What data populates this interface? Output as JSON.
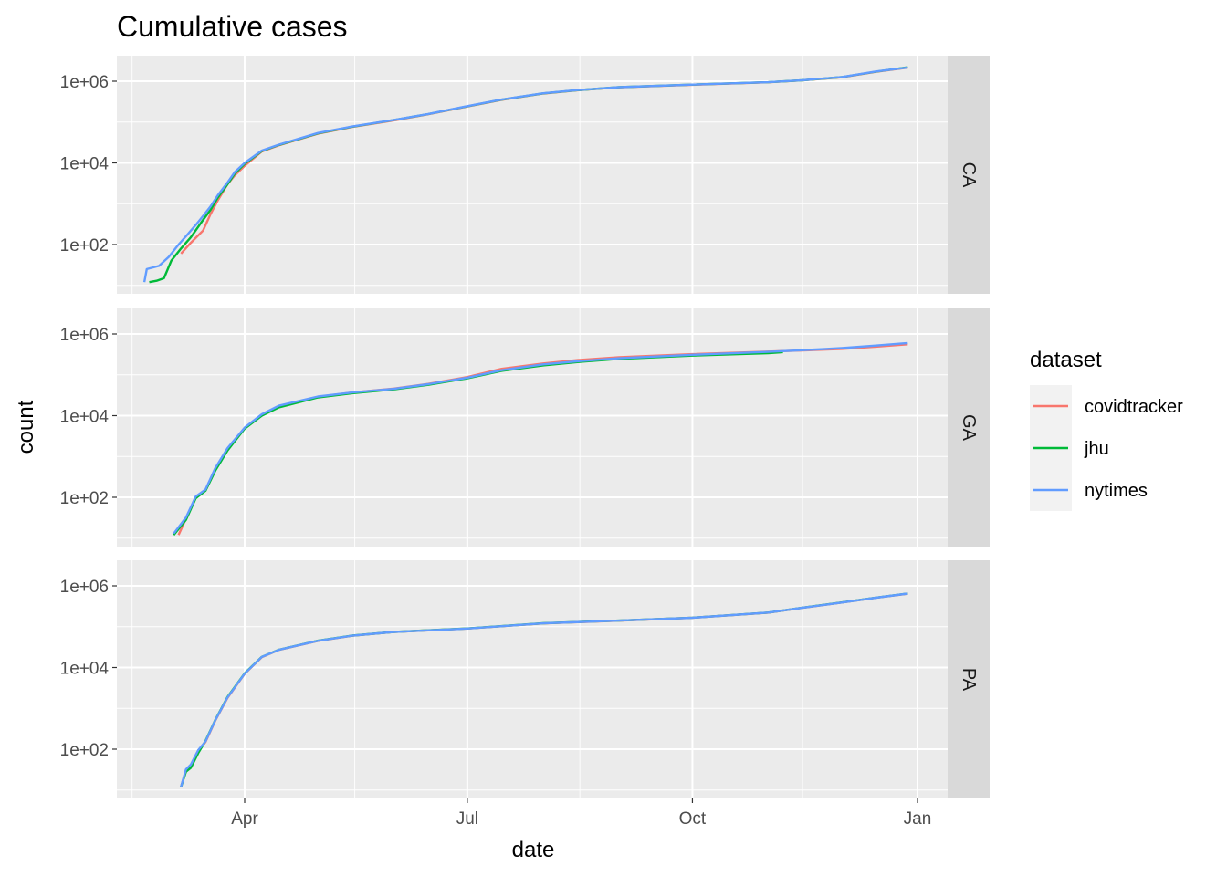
{
  "chart_data": {
    "type": "line",
    "title": "Cumulative cases",
    "xlabel": "date",
    "ylabel": "count",
    "y_scale": "log10",
    "y_ticks": [
      100,
      10000,
      1000000
    ],
    "y_tick_labels": [
      "1e+02",
      "1e+04",
      "1e+06"
    ],
    "x_ticks": [
      "2020-04-01",
      "2020-07-01",
      "2020-10-01",
      "2021-01-01"
    ],
    "x_tick_labels": [
      "Apr",
      "Jul",
      "Oct",
      "Jan"
    ],
    "xlim": [
      "2020-02-15",
      "2021-01-24"
    ],
    "ylim": [
      12,
      2600000
    ],
    "legend": {
      "title": "dataset",
      "position": "right",
      "entries": [
        "covidtracker",
        "jhu",
        "nytimes"
      ]
    },
    "colors": {
      "covidtracker": "#F8766D",
      "jhu": "#00BA38",
      "nytimes": "#619CFF"
    },
    "facets": [
      {
        "label": "CA",
        "series": [
          {
            "name": "covidtracker",
            "x": [
              "2020-03-06",
              "2020-03-10",
              "2020-03-15",
              "2020-03-18",
              "2020-03-21",
              "2020-03-25",
              "2020-03-28",
              "2020-04-01",
              "2020-04-08",
              "2020-04-15",
              "2020-05-01",
              "2020-05-15",
              "2020-06-01",
              "2020-06-15",
              "2020-07-01",
              "2020-07-15",
              "2020-08-01",
              "2020-08-15",
              "2020-09-01",
              "2020-10-01",
              "2020-11-01",
              "2020-11-15",
              "2020-12-01",
              "2020-12-15",
              "2020-12-28"
            ],
            "y": [
              60,
              110,
              220,
              550,
              1200,
              3000,
              5000,
              8500,
              19000,
              27000,
              52000,
              76000,
              110000,
              155000,
              240000,
              350000,
              500000,
              600000,
              710000,
              820000,
              940000,
              1050000,
              1250000,
              1700000,
              2150000
            ]
          },
          {
            "name": "jhu",
            "x": [
              "2020-02-22",
              "2020-02-25",
              "2020-02-28",
              "2020-03-02",
              "2020-03-06",
              "2020-03-10",
              "2020-03-15",
              "2020-03-18",
              "2020-03-21",
              "2020-03-25",
              "2020-03-28",
              "2020-04-01",
              "2020-04-08",
              "2020-04-15",
              "2020-05-01",
              "2020-05-15",
              "2020-06-01",
              "2020-06-15",
              "2020-07-01",
              "2020-07-15",
              "2020-08-01",
              "2020-08-15",
              "2020-09-01",
              "2020-10-01",
              "2020-11-01",
              "2020-11-15",
              "2020-12-01",
              "2020-12-15",
              "2020-12-28"
            ],
            "y": [
              12,
              13,
              15,
              40,
              80,
              150,
              400,
              700,
              1400,
              3000,
              5500,
              9500,
              19500,
              27500,
              53000,
              77000,
              112000,
              157000,
              243000,
              353000,
              505000,
              605000,
              715000,
              825000,
              945000,
              1055000,
              1260000,
              1720000,
              2200000
            ]
          },
          {
            "name": "nytimes",
            "x": [
              "2020-02-20",
              "2020-02-21",
              "2020-02-26",
              "2020-03-01",
              "2020-03-05",
              "2020-03-08",
              "2020-03-12",
              "2020-03-15",
              "2020-03-18",
              "2020-03-21",
              "2020-03-25",
              "2020-03-28",
              "2020-04-01",
              "2020-04-08",
              "2020-04-15",
              "2020-05-01",
              "2020-05-15",
              "2020-06-01",
              "2020-06-15",
              "2020-07-01",
              "2020-07-15",
              "2020-08-01",
              "2020-08-15",
              "2020-09-01",
              "2020-10-01",
              "2020-11-01",
              "2020-11-15",
              "2020-12-01",
              "2020-12-15",
              "2020-12-28"
            ],
            "y": [
              12,
              25,
              30,
              50,
              100,
              160,
              300,
              500,
              850,
              1600,
              3300,
              6000,
              10000,
              20000,
              28000,
              54000,
              78000,
              113000,
              158000,
              245000,
              355000,
              507000,
              607000,
              717000,
              827000,
              947000,
              1057000,
              1265000,
              1730000,
              2180000
            ]
          }
        ]
      },
      {
        "label": "GA",
        "series": [
          {
            "name": "covidtracker",
            "x": [
              "2020-03-05",
              "2020-03-08",
              "2020-03-12",
              "2020-03-16",
              "2020-03-20",
              "2020-03-25",
              "2020-04-01",
              "2020-04-08",
              "2020-04-15",
              "2020-05-01",
              "2020-05-15",
              "2020-06-01",
              "2020-06-15",
              "2020-07-01",
              "2020-07-15",
              "2020-08-01",
              "2020-08-15",
              "2020-09-01",
              "2020-10-01",
              "2020-11-01",
              "2020-11-15",
              "2020-12-01",
              "2020-12-15",
              "2020-12-28"
            ],
            "y": [
              12,
              30,
              100,
              150,
              500,
              1500,
              5000,
              10500,
              17000,
              29000,
              37000,
              46000,
              60000,
              88000,
              140000,
              190000,
              230000,
              270000,
              320000,
              370000,
              395000,
              430000,
              490000,
              560000
            ]
          },
          {
            "name": "jhu",
            "x": [
              "2020-03-03",
              "2020-03-08",
              "2020-03-12",
              "2020-03-16",
              "2020-03-20",
              "2020-03-25",
              "2020-04-01",
              "2020-04-08",
              "2020-04-15",
              "2020-05-01",
              "2020-05-15",
              "2020-06-01",
              "2020-06-15",
              "2020-07-01",
              "2020-07-15",
              "2020-08-01",
              "2020-08-15",
              "2020-09-01",
              "2020-10-01",
              "2020-11-01",
              "2020-11-07"
            ],
            "y": [
              12,
              28,
              95,
              145,
              450,
              1400,
              4800,
              10000,
              16000,
              28000,
              35500,
              44000,
              57000,
              82000,
              125000,
              170000,
              205000,
              245000,
              295000,
              340000,
              360000
            ]
          },
          {
            "name": "nytimes",
            "x": [
              "2020-03-03",
              "2020-03-08",
              "2020-03-12",
              "2020-03-16",
              "2020-03-20",
              "2020-03-25",
              "2020-04-01",
              "2020-04-08",
              "2020-04-15",
              "2020-05-01",
              "2020-05-15",
              "2020-06-01",
              "2020-06-15",
              "2020-07-01",
              "2020-07-15",
              "2020-08-01",
              "2020-08-15",
              "2020-09-01",
              "2020-10-01",
              "2020-11-01",
              "2020-11-15",
              "2020-12-01",
              "2020-12-15",
              "2020-12-28"
            ],
            "y": [
              13,
              32,
              105,
              155,
              520,
              1600,
              5100,
              10800,
              17500,
              29500,
              37000,
              45500,
              59000,
              85000,
              130000,
              180000,
              215000,
              255000,
              310000,
              365000,
              400000,
              450000,
              520000,
              600000
            ]
          }
        ]
      },
      {
        "label": "PA",
        "series": [
          {
            "name": "covidtracker",
            "x": [
              "2020-03-06",
              "2020-03-08",
              "2020-03-10",
              "2020-03-13",
              "2020-03-16",
              "2020-03-20",
              "2020-03-25",
              "2020-04-01",
              "2020-04-08",
              "2020-04-15",
              "2020-05-01",
              "2020-05-15",
              "2020-06-01",
              "2020-06-15",
              "2020-07-01",
              "2020-08-01",
              "2020-09-01",
              "2020-10-01",
              "2020-11-01",
              "2020-11-15",
              "2020-12-01",
              "2020-12-15",
              "2020-12-28"
            ],
            "y": [
              12,
              30,
              40,
              90,
              150,
              500,
              1800,
              7000,
              18000,
              27000,
              45000,
              60000,
              74000,
              81000,
              90000,
              120000,
              140000,
              165000,
              220000,
              290000,
              390000,
              510000,
              640000
            ]
          },
          {
            "name": "jhu",
            "x": [
              "2020-03-06",
              "2020-03-08",
              "2020-03-10",
              "2020-03-13",
              "2020-03-16",
              "2020-03-20",
              "2020-03-25",
              "2020-04-01",
              "2020-04-08",
              "2020-04-15",
              "2020-05-01",
              "2020-05-15",
              "2020-06-01",
              "2020-06-15",
              "2020-07-01",
              "2020-08-01",
              "2020-09-01",
              "2020-10-01",
              "2020-11-01",
              "2020-11-15",
              "2020-12-01",
              "2020-12-15",
              "2020-12-28"
            ],
            "y": [
              12,
              28,
              35,
              80,
              160,
              520,
              1900,
              7200,
              18300,
              27300,
              45500,
              60500,
              74500,
              81500,
              90500,
              121000,
              141000,
              166000,
              222000,
              292000,
              392000,
              515000,
              650000
            ]
          },
          {
            "name": "nytimes",
            "x": [
              "2020-03-06",
              "2020-03-08",
              "2020-03-10",
              "2020-03-13",
              "2020-03-16",
              "2020-03-20",
              "2020-03-25",
              "2020-04-01",
              "2020-04-08",
              "2020-04-15",
              "2020-05-01",
              "2020-05-15",
              "2020-06-01",
              "2020-06-15",
              "2020-07-01",
              "2020-08-01",
              "2020-09-01",
              "2020-10-01",
              "2020-11-01",
              "2020-11-15",
              "2020-12-01",
              "2020-12-15",
              "2020-12-28"
            ],
            "y": [
              12,
              32,
              42,
              95,
              155,
              510,
              1850,
              7100,
              18200,
              27200,
              45200,
              60200,
              74200,
              81200,
              90200,
              120500,
              140500,
              165500,
              221000,
              291000,
              391000,
              512000,
              645000
            ]
          }
        ]
      }
    ]
  }
}
